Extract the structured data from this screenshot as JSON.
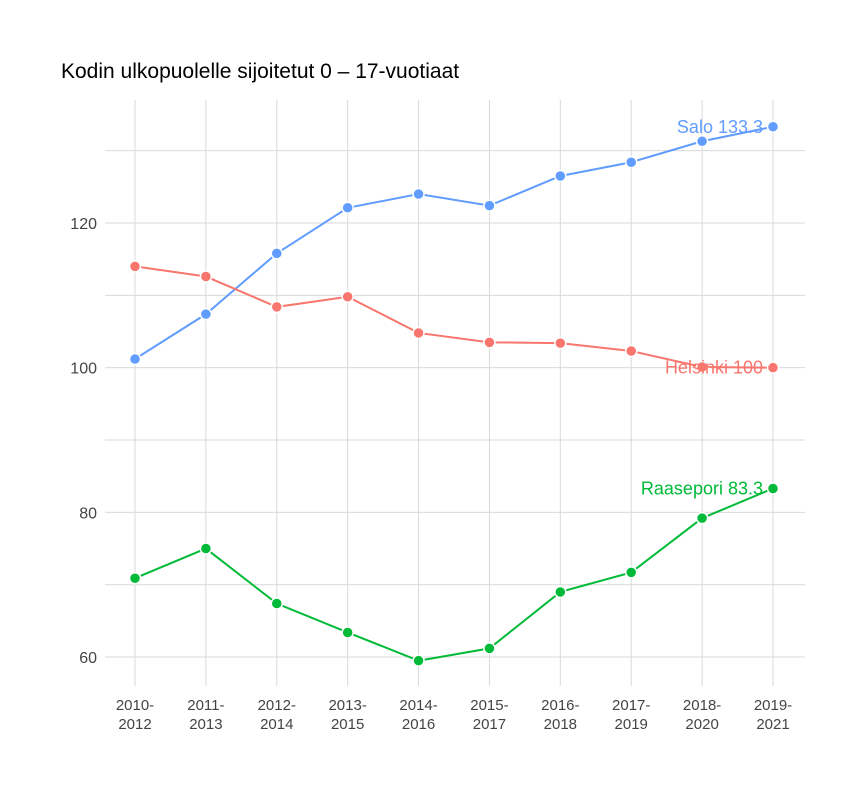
{
  "chart_data": {
    "type": "line",
    "title": "Kodin ulkopuolelle sijoitetut 0 – 17-vuotiaat",
    "xlabel": "",
    "ylabel": "",
    "categories": [
      [
        "2010-",
        "2012"
      ],
      [
        "2011-",
        "2013"
      ],
      [
        "2012-",
        "2014"
      ],
      [
        "2013-",
        "2015"
      ],
      [
        "2014-",
        "2016"
      ],
      [
        "2015-",
        "2017"
      ],
      [
        "2016-",
        "2018"
      ],
      [
        "2017-",
        "2019"
      ],
      [
        "2018-",
        "2020"
      ],
      [
        "2019-",
        "2021"
      ]
    ],
    "ylim": [
      56,
      137
    ],
    "yticks": [
      60,
      80,
      100,
      120
    ],
    "grid": true,
    "series": [
      {
        "name": "Salo",
        "end_label": "Salo 133.3",
        "color": "#619cff",
        "values": [
          101.2,
          107.4,
          115.8,
          122.1,
          124.0,
          122.4,
          126.5,
          128.4,
          131.3,
          133.3
        ]
      },
      {
        "name": "Helsinki",
        "end_label": "Helsinki 100",
        "color": "#f8766d",
        "values": [
          114.0,
          112.6,
          108.4,
          109.8,
          104.8,
          103.5,
          103.4,
          102.3,
          100.1,
          100.0
        ]
      },
      {
        "name": "Raasepori",
        "end_label": "Raasepori 83.3",
        "color": "#00ba38",
        "values": [
          70.9,
          75.0,
          67.4,
          63.4,
          59.5,
          61.2,
          69.0,
          71.7,
          79.2,
          83.3
        ]
      }
    ]
  }
}
